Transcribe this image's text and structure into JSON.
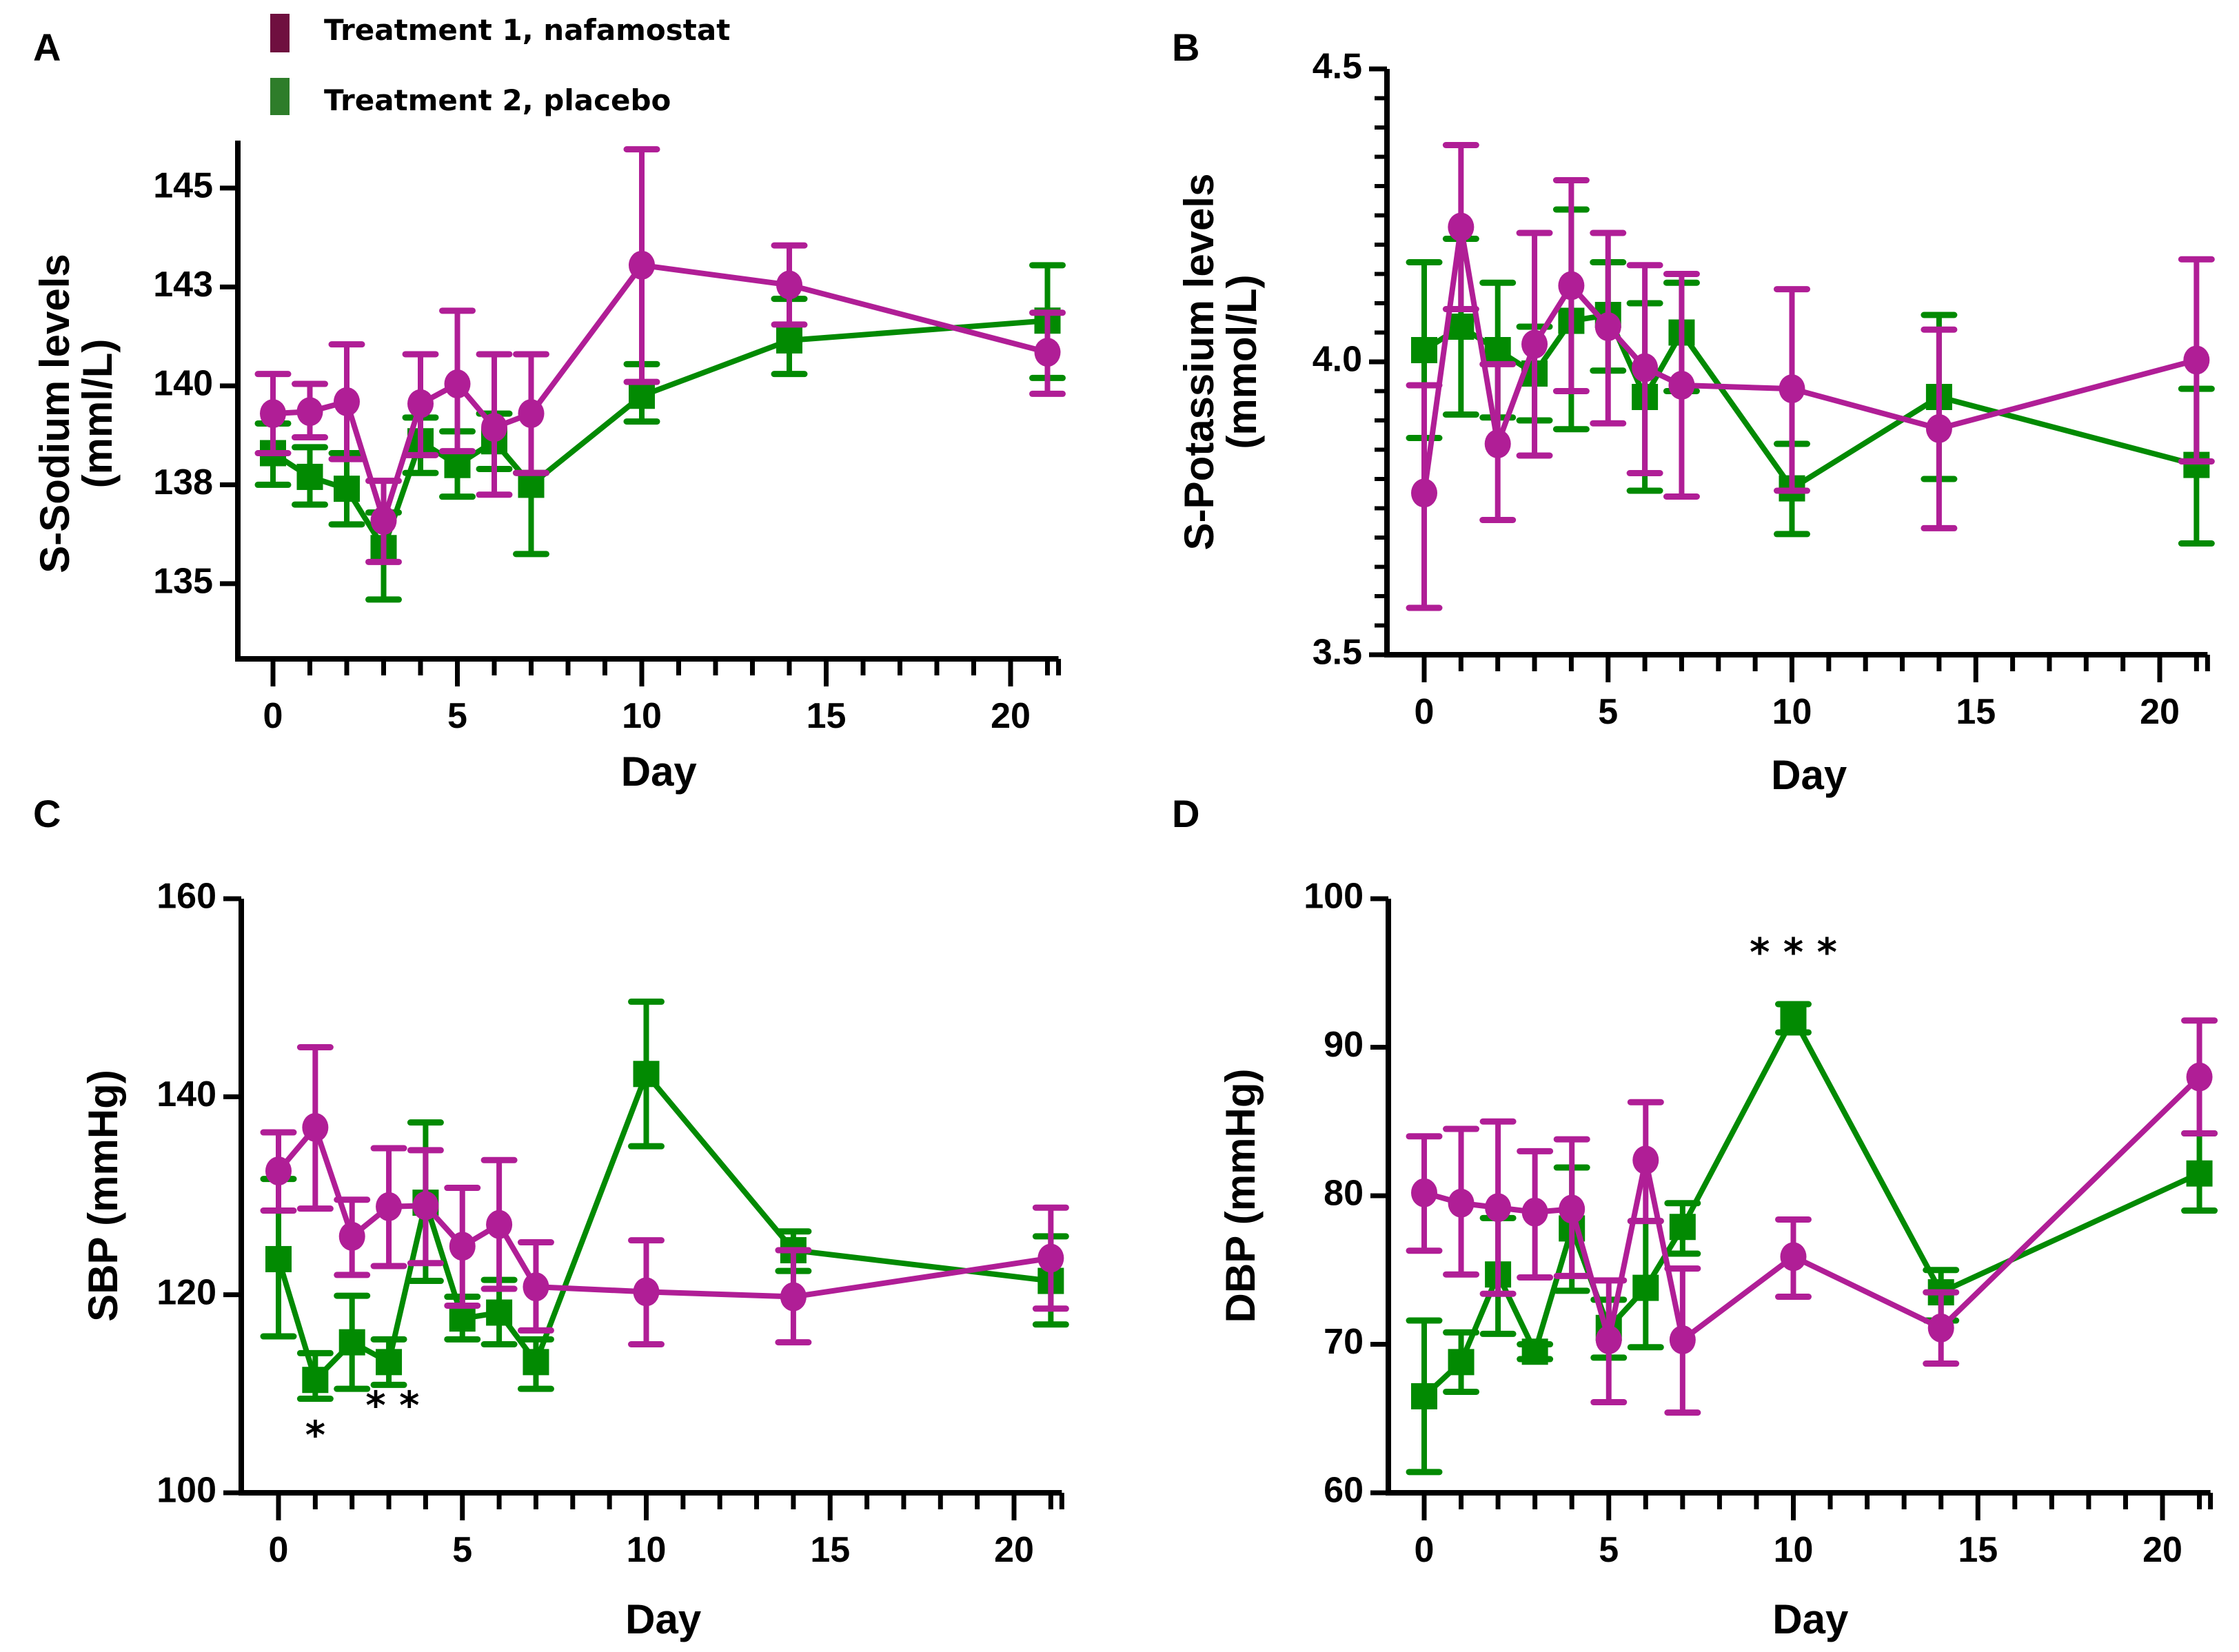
{
  "legend": {
    "items": [
      {
        "label": "Treatment 1, nafamostat",
        "color": "#6f0f3f"
      },
      {
        "label": "Treatment 2, placebo",
        "color": "#2e7d2a"
      }
    ]
  },
  "series_style": {
    "nafamostat": {
      "color": "#b01e96",
      "marker": "circle"
    },
    "placebo": {
      "color": "#028a02",
      "marker": "square"
    }
  },
  "chart_data": [
    {
      "panel": "A",
      "type": "line",
      "title": "",
      "xlabel": "Day",
      "ylabel": "S-Sodium levels (mml/L)",
      "ylabel_lines": [
        "S-Sodium levels",
        "(mml/L)"
      ],
      "xlim": [
        -1,
        21.3
      ],
      "ylim": [
        133.1,
        146.2
      ],
      "x_ticks": [
        0,
        5,
        10,
        15,
        20
      ],
      "x_minor_step": 1,
      "y_ticks": [
        135,
        137.5,
        140,
        142.5,
        145
      ],
      "y_tick_labels": [
        "135",
        "138",
        "140",
        "143",
        "145"
      ],
      "y_minor_step": null,
      "grid": false,
      "x": [
        0,
        1,
        2,
        3,
        4,
        5,
        6,
        7,
        10,
        14,
        21
      ],
      "series": [
        {
          "name": "Treatment 1, nafamostat",
          "key": "nafamostat",
          "values": [
            139.3,
            139.35,
            139.6,
            136.6,
            139.55,
            140.05,
            138.95,
            139.3,
            143.05,
            142.55,
            140.85
          ],
          "err_high": [
            140.3,
            140.05,
            141.05,
            137.6,
            140.8,
            141.9,
            140.8,
            140.8,
            145.98,
            143.55,
            141.85
          ],
          "err_low": [
            138.3,
            138.7,
            138.15,
            135.55,
            138.25,
            138.35,
            137.25,
            137.8,
            140.1,
            141.55,
            139.8
          ]
        },
        {
          "name": "Treatment 2, placebo",
          "key": "placebo",
          "values": [
            138.3,
            137.7,
            137.4,
            135.9,
            138.6,
            138.0,
            138.6,
            137.5,
            139.75,
            141.15,
            141.65
          ],
          "err_high": [
            139.05,
            138.45,
            138.3,
            136.8,
            139.2,
            138.85,
            139.3,
            137.8,
            140.55,
            142.2,
            143.05
          ],
          "err_low": [
            137.5,
            137.0,
            136.5,
            134.6,
            137.8,
            137.2,
            137.9,
            135.75,
            139.1,
            140.3,
            140.2
          ]
        }
      ],
      "annotations": []
    },
    {
      "panel": "B",
      "type": "line",
      "title": "",
      "xlabel": "Day",
      "ylabel": "S-Potassium levels (mmol/L)",
      "ylabel_lines": [
        "S-Potassium levels",
        "(mmol/L)"
      ],
      "xlim": [
        -1,
        21.3
      ],
      "ylim": [
        3.5,
        4.5
      ],
      "x_ticks": [
        0,
        5,
        10,
        15,
        20
      ],
      "x_minor_step": 1,
      "y_ticks": [
        3.5,
        4.0,
        4.5
      ],
      "y_tick_labels": [
        "3.5",
        "4.0",
        "4.5"
      ],
      "y_minor_step": 0.05,
      "grid": false,
      "x": [
        0,
        1,
        2,
        3,
        4,
        5,
        6,
        7,
        10,
        14,
        21
      ],
      "series": [
        {
          "name": "Treatment 1, nafamostat",
          "key": "nafamostat",
          "values": [
            3.776,
            4.23,
            3.86,
            4.03,
            4.13,
            4.06,
            3.99,
            3.96,
            3.954,
            3.886,
            4.003
          ],
          "err_high": [
            3.96,
            4.37,
            3.996,
            4.22,
            4.31,
            4.22,
            4.165,
            4.15,
            4.124,
            4.055,
            4.175
          ],
          "err_low": [
            3.58,
            4.09,
            3.73,
            3.84,
            3.95,
            3.895,
            3.81,
            3.77,
            3.78,
            3.716,
            3.83
          ]
        },
        {
          "name": "Treatment 2, placebo",
          "key": "placebo",
          "values": [
            4.02,
            4.06,
            4.02,
            3.98,
            4.07,
            4.08,
            3.94,
            4.05,
            3.784,
            3.94,
            3.824
          ],
          "err_high": [
            4.17,
            4.21,
            4.135,
            4.06,
            4.26,
            4.17,
            4.1,
            4.135,
            3.86,
            4.08,
            3.954
          ],
          "err_low": [
            3.87,
            3.91,
            3.905,
            3.9,
            3.885,
            3.985,
            3.78,
            3.95,
            3.706,
            3.8,
            3.69
          ]
        }
      ],
      "annotations": []
    },
    {
      "panel": "C",
      "type": "line",
      "title": "",
      "xlabel": "Day",
      "ylabel": "SBP (mmHg)",
      "ylabel_lines": [
        "SBP (mmHg)"
      ],
      "xlim": [
        -1,
        21.3
      ],
      "ylim": [
        100,
        160
      ],
      "x_ticks": [
        0,
        5,
        10,
        15,
        20
      ],
      "x_minor_step": 1,
      "y_ticks": [
        100,
        120,
        140,
        160
      ],
      "y_tick_labels": [
        "100",
        "120",
        "140",
        "160"
      ],
      "y_minor_step": null,
      "grid": false,
      "x": [
        0,
        1,
        2,
        3,
        4,
        5,
        6,
        7,
        10,
        14,
        21
      ],
      "series": [
        {
          "name": "Treatment 1, nafamostat",
          "key": "nafamostat",
          "values": [
            132.5,
            136.9,
            125.9,
            128.9,
            129.0,
            124.9,
            127.1,
            120.8,
            120.3,
            119.8,
            123.7
          ],
          "err_high": [
            136.4,
            145.0,
            129.6,
            134.8,
            134.6,
            130.8,
            133.6,
            125.3,
            125.5,
            124.5,
            128.8
          ],
          "err_low": [
            128.5,
            128.7,
            122.0,
            122.9,
            123.2,
            118.9,
            120.6,
            116.4,
            115.0,
            115.2,
            118.6
          ]
        },
        {
          "name": "Treatment 2, placebo",
          "key": "placebo",
          "values": [
            123.6,
            111.4,
            115.2,
            113.2,
            129.3,
            117.6,
            118.2,
            113.2,
            142.3,
            124.5,
            121.4
          ],
          "err_high": [
            131.7,
            114.1,
            119.9,
            115.5,
            137.4,
            119.8,
            121.5,
            115.5,
            149.6,
            126.4,
            125.9
          ],
          "err_low": [
            115.8,
            109.5,
            110.5,
            110.9,
            121.4,
            115.5,
            115.0,
            110.5,
            135.0,
            122.4,
            117.0
          ]
        }
      ],
      "annotations": [
        {
          "text": "*",
          "x": 1,
          "y": 104.5
        },
        {
          "text": "* *",
          "x": 3.1,
          "y": 107.5
        }
      ]
    },
    {
      "panel": "D",
      "type": "line",
      "title": "",
      "xlabel": "Day",
      "ylabel": "DBP (mmHg)",
      "ylabel_lines": [
        "DBP (mmHg)"
      ],
      "xlim": [
        -1,
        21.3
      ],
      "ylim": [
        60,
        100
      ],
      "x_ticks": [
        0,
        5,
        10,
        15,
        20
      ],
      "x_minor_step": 1,
      "y_ticks": [
        60,
        70,
        80,
        90,
        100
      ],
      "y_tick_labels": [
        "60",
        "70",
        "80",
        "90",
        "100"
      ],
      "y_minor_step": null,
      "grid": false,
      "x": [
        0,
        1,
        2,
        3,
        4,
        5,
        6,
        7,
        10,
        14,
        21
      ],
      "series": [
        {
          "name": "Treatment 1, nafamostat",
          "key": "nafamostat",
          "values": [
            80.2,
            79.5,
            79.2,
            78.9,
            79.1,
            70.3,
            82.4,
            70.3,
            75.9,
            71.1,
            88.0
          ],
          "err_high": [
            84.0,
            84.5,
            85.0,
            83.0,
            83.8,
            74.3,
            86.3,
            75.1,
            78.4,
            73.5,
            91.8
          ],
          "err_low": [
            76.3,
            74.7,
            73.4,
            74.5,
            74.6,
            66.1,
            78.3,
            65.4,
            73.2,
            68.7,
            84.2
          ]
        },
        {
          "name": "Treatment 2, placebo",
          "key": "placebo",
          "values": [
            66.5,
            68.8,
            74.7,
            69.5,
            77.8,
            71.1,
            73.8,
            77.9,
            92.0,
            73.5,
            81.5
          ],
          "err_high": [
            71.6,
            70.8,
            78.5,
            70.0,
            81.9,
            73.0,
            78.3,
            79.5,
            92.9,
            75.0,
            84.2
          ],
          "err_low": [
            61.4,
            66.8,
            70.7,
            69.0,
            73.6,
            69.1,
            69.8,
            76.1,
            91.0,
            71.6,
            79.0
          ]
        }
      ],
      "annotations": [
        {
          "text": "* * *",
          "x": 10,
          "y": 95.5
        }
      ]
    }
  ]
}
